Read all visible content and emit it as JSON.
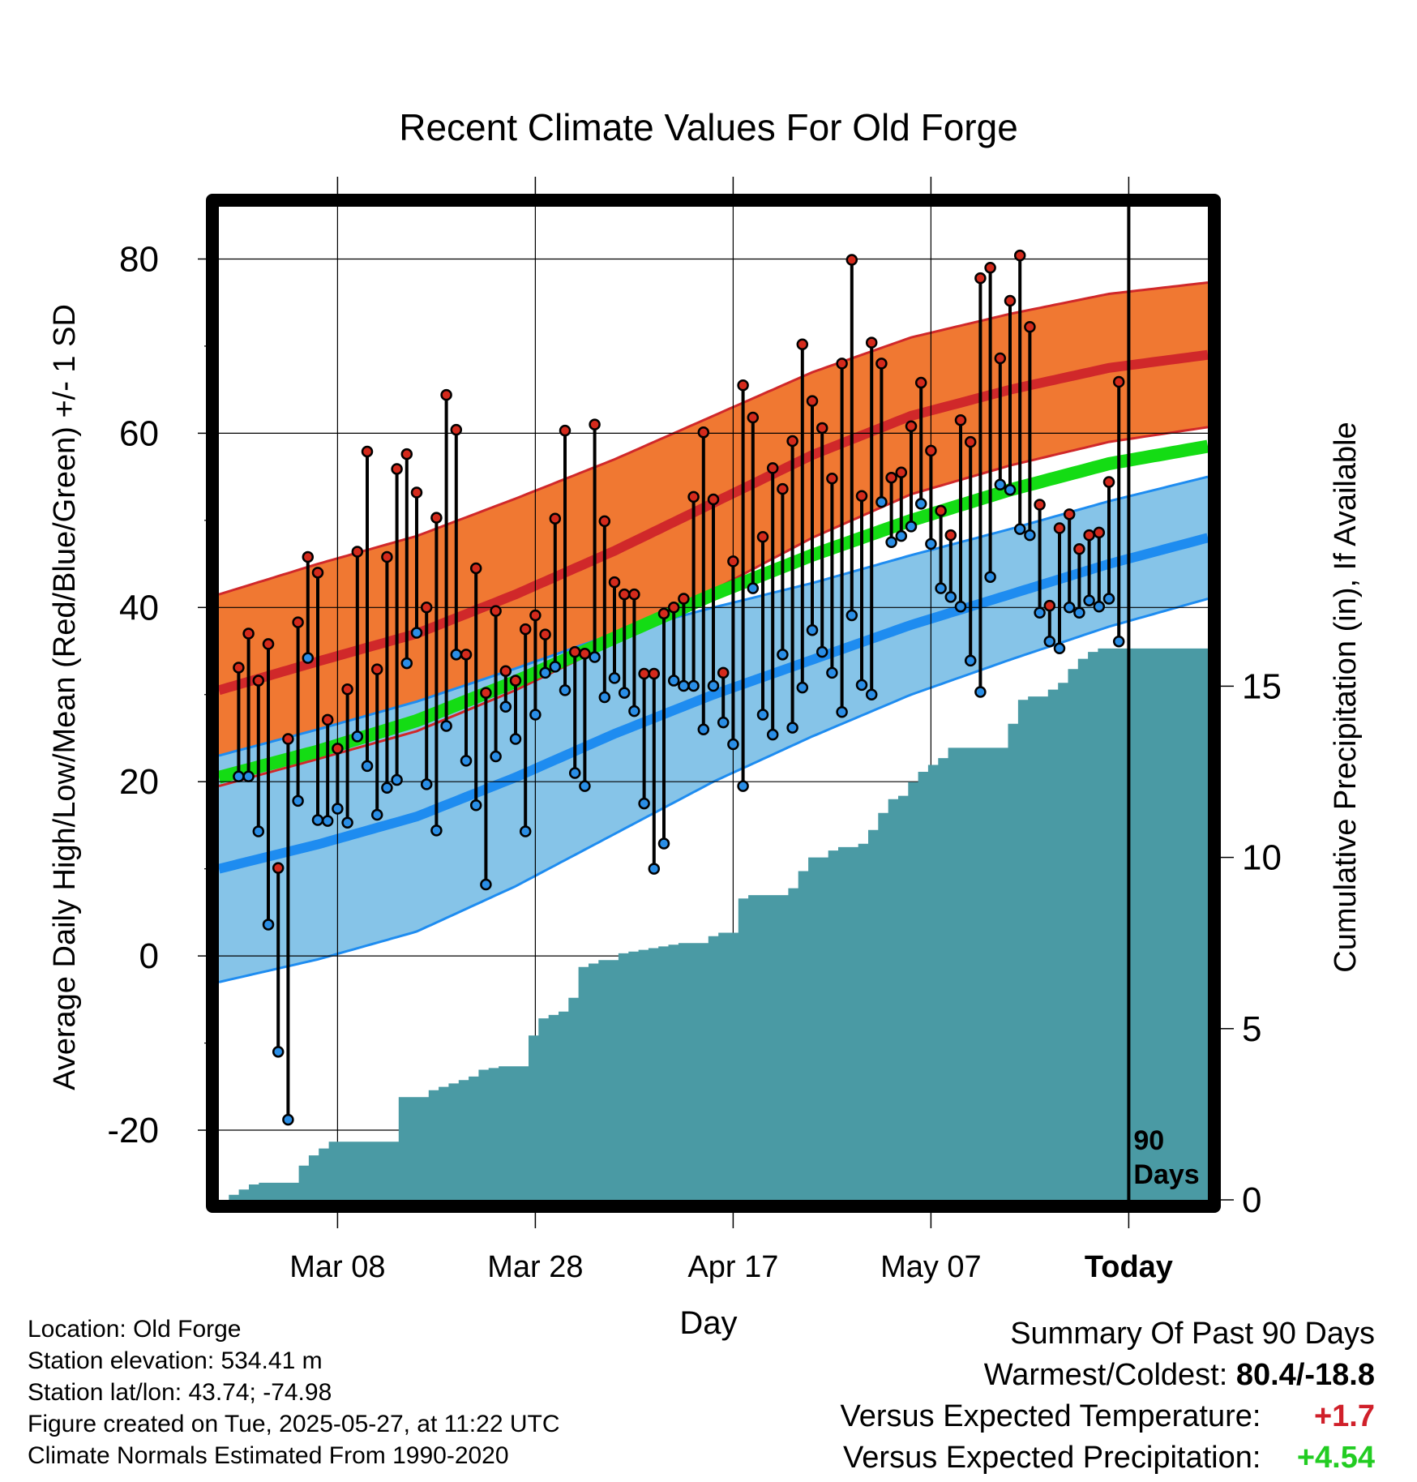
{
  "chart_data": {
    "type": "line",
    "title": "Recent Climate Values For Old Forge",
    "xlabel": "Day",
    "ylabel_left": "Average Daily High/Low/Mean (Red/Blue/Green) +/- 1 SD",
    "ylabel_right": "Cumulative Precipitation (in), If Available",
    "x_tick_labels": [
      "Mar 08",
      "Mar 28",
      "Apr 17",
      "May 07",
      "Today"
    ],
    "y_ticks_left": [
      -20,
      0,
      20,
      40,
      60,
      80
    ],
    "y_ticks_right": [
      0,
      5,
      10,
      15
    ],
    "ylim_left": [
      -28,
      86
    ],
    "ylim_right": [
      0,
      29
    ],
    "today_marker_label": [
      "90",
      "Days"
    ],
    "grid": true,
    "colors": {
      "high_band": "#f07832",
      "high_line": "#d0282a",
      "low_band": "#86c4e8",
      "low_line": "#1e8cf0",
      "mean_line": "#14dc14",
      "precip_fill": "#4a9aa4",
      "high_marker": "#d42a1c",
      "low_marker": "#2a8ee6",
      "today_line": "#000000"
    },
    "normal_high": [
      30.5,
      33.8,
      37.0,
      41.5,
      46.5,
      52.0,
      57.5,
      62.0,
      65.0,
      67.5,
      69.0
    ],
    "normal_high_sd": [
      11.0,
      11.2,
      11.2,
      11.0,
      10.5,
      10.0,
      9.5,
      9.0,
      8.7,
      8.5,
      8.3
    ],
    "normal_low": [
      10.0,
      12.8,
      16.0,
      20.5,
      25.5,
      30.0,
      34.0,
      38.0,
      41.5,
      45.0,
      48.0
    ],
    "normal_low_sd": [
      13.0,
      13.2,
      13.2,
      12.5,
      11.5,
      10.0,
      8.8,
      8.0,
      7.5,
      7.2,
      7.0
    ],
    "normal_mean": [
      20.5,
      23.5,
      27.0,
      31.5,
      36.5,
      41.5,
      46.0,
      50.0,
      53.5,
      56.5,
      58.5
    ],
    "days": [
      {
        "d": 0,
        "hi": 33.1,
        "lo": 20.6
      },
      {
        "d": 1,
        "hi": 37.0,
        "lo": 20.6
      },
      {
        "d": 2,
        "hi": 31.6,
        "lo": 14.3
      },
      {
        "d": 3,
        "hi": 35.8,
        "lo": 3.6
      },
      {
        "d": 4,
        "hi": 10.1,
        "lo": -11.0
      },
      {
        "d": 5,
        "hi": 24.9,
        "lo": -18.8
      },
      {
        "d": 6,
        "hi": 38.3,
        "lo": 17.8
      },
      {
        "d": 7,
        "hi": 45.8,
        "lo": 34.2
      },
      {
        "d": 8,
        "hi": 44.0,
        "lo": 15.6
      },
      {
        "d": 9,
        "hi": 27.1,
        "lo": 15.5
      },
      {
        "d": 10,
        "hi": 23.8,
        "lo": 16.9
      },
      {
        "d": 11,
        "hi": 30.6,
        "lo": 15.3
      },
      {
        "d": 12,
        "hi": 46.4,
        "lo": 25.2
      },
      {
        "d": 13,
        "hi": 57.9,
        "lo": 21.8
      },
      {
        "d": 14,
        "hi": 32.9,
        "lo": 16.2
      },
      {
        "d": 15,
        "hi": 45.8,
        "lo": 19.3
      },
      {
        "d": 16,
        "hi": 55.9,
        "lo": 20.2
      },
      {
        "d": 17,
        "hi": 57.6,
        "lo": 33.6
      },
      {
        "d": 18,
        "hi": 53.2,
        "lo": 37.1
      },
      {
        "d": 19,
        "hi": 40.0,
        "lo": 19.7
      },
      {
        "d": 20,
        "hi": 50.3,
        "lo": 14.4
      },
      {
        "d": 21,
        "hi": 64.4,
        "lo": 26.4
      },
      {
        "d": 22,
        "hi": 60.4,
        "lo": 34.6
      },
      {
        "d": 23,
        "hi": 34.6,
        "lo": 22.4
      },
      {
        "d": 24,
        "hi": 44.5,
        "lo": 17.3
      },
      {
        "d": 25,
        "hi": 30.2,
        "lo": 8.2
      },
      {
        "d": 26,
        "hi": 39.6,
        "lo": 22.9
      },
      {
        "d": 27,
        "hi": 32.7,
        "lo": 28.6
      },
      {
        "d": 28,
        "hi": 31.6,
        "lo": 24.9
      },
      {
        "d": 29,
        "hi": 37.5,
        "lo": 14.3
      },
      {
        "d": 30,
        "hi": 39.1,
        "lo": 27.7
      },
      {
        "d": 31,
        "hi": 36.9,
        "lo": 32.5
      },
      {
        "d": 32,
        "hi": 50.2,
        "lo": 33.2
      },
      {
        "d": 33,
        "hi": 60.3,
        "lo": 30.5
      },
      {
        "d": 34,
        "hi": 34.9,
        "lo": 21.0
      },
      {
        "d": 35,
        "hi": 34.7,
        "lo": 19.5
      },
      {
        "d": 36,
        "hi": 61.0,
        "lo": 34.3
      },
      {
        "d": 37,
        "hi": 49.9,
        "lo": 29.7
      },
      {
        "d": 38,
        "hi": 42.9,
        "lo": 31.9
      },
      {
        "d": 39,
        "hi": 41.5,
        "lo": 30.2
      },
      {
        "d": 40,
        "hi": 41.5,
        "lo": 28.1
      },
      {
        "d": 41,
        "hi": 32.4,
        "lo": 17.5
      },
      {
        "d": 42,
        "hi": 32.4,
        "lo": 10.0
      },
      {
        "d": 43,
        "hi": 39.3,
        "lo": 12.9
      },
      {
        "d": 44,
        "hi": 40.0,
        "lo": 31.6
      },
      {
        "d": 45,
        "hi": 41.0,
        "lo": 31.0
      },
      {
        "d": 46,
        "hi": 52.7,
        "lo": 31.0
      },
      {
        "d": 47,
        "hi": 60.1,
        "lo": 26.0
      },
      {
        "d": 48,
        "hi": 52.4,
        "lo": 31.0
      },
      {
        "d": 49,
        "hi": 32.5,
        "lo": 26.8
      },
      {
        "d": 50,
        "hi": 45.3,
        "lo": 24.3
      },
      {
        "d": 51,
        "hi": 65.5,
        "lo": 19.5
      },
      {
        "d": 52,
        "hi": 61.8,
        "lo": 42.2
      },
      {
        "d": 53,
        "hi": 48.1,
        "lo": 27.7
      },
      {
        "d": 54,
        "hi": 56.0,
        "lo": 25.4
      },
      {
        "d": 55,
        "hi": 53.6,
        "lo": 34.6
      },
      {
        "d": 56,
        "hi": 59.1,
        "lo": 26.2
      },
      {
        "d": 57,
        "hi": 70.2,
        "lo": 30.8
      },
      {
        "d": 58,
        "hi": 63.7,
        "lo": 37.4
      },
      {
        "d": 59,
        "hi": 60.6,
        "lo": 34.9
      },
      {
        "d": 60,
        "hi": 54.8,
        "lo": 32.5
      },
      {
        "d": 61,
        "hi": 68.0,
        "lo": 28.0
      },
      {
        "d": 62,
        "hi": 79.9,
        "lo": 39.1
      },
      {
        "d": 63,
        "hi": 52.8,
        "lo": 31.1
      },
      {
        "d": 64,
        "hi": 70.4,
        "lo": 30.0
      },
      {
        "d": 65,
        "hi": 68.0,
        "lo": 52.1
      },
      {
        "d": 66,
        "hi": 54.9,
        "lo": 47.5
      },
      {
        "d": 67,
        "hi": 55.5,
        "lo": 48.2
      },
      {
        "d": 68,
        "hi": 60.8,
        "lo": 49.3
      },
      {
        "d": 69,
        "hi": 65.8,
        "lo": 51.9
      },
      {
        "d": 70,
        "hi": 58.0,
        "lo": 47.3
      },
      {
        "d": 71,
        "hi": 51.1,
        "lo": 42.2
      },
      {
        "d": 72,
        "hi": 48.3,
        "lo": 41.2
      },
      {
        "d": 73,
        "hi": 61.5,
        "lo": 40.1
      },
      {
        "d": 74,
        "hi": 59.0,
        "lo": 33.9
      },
      {
        "d": 75,
        "hi": 77.8,
        "lo": 30.3
      },
      {
        "d": 76,
        "hi": 79.0,
        "lo": 43.5
      },
      {
        "d": 77,
        "hi": 68.6,
        "lo": 54.1
      },
      {
        "d": 78,
        "hi": 75.2,
        "lo": 53.5
      },
      {
        "d": 79,
        "hi": 80.4,
        "lo": 49.0
      },
      {
        "d": 80,
        "hi": 72.2,
        "lo": 48.3
      },
      {
        "d": 81,
        "hi": 51.8,
        "lo": 39.4
      },
      {
        "d": 82,
        "hi": 40.2,
        "lo": 36.1
      },
      {
        "d": 83,
        "hi": 49.1,
        "lo": 35.3
      },
      {
        "d": 84,
        "hi": 50.7,
        "lo": 40.0
      },
      {
        "d": 85,
        "hi": 46.7,
        "lo": 39.4
      },
      {
        "d": 86,
        "hi": 48.3,
        "lo": 40.8
      },
      {
        "d": 87,
        "hi": 48.6,
        "lo": 40.1
      },
      {
        "d": 88,
        "hi": 54.4,
        "lo": 41.0
      },
      {
        "d": 89,
        "hi": 65.9,
        "lo": 36.1
      }
    ],
    "cumulative_precip": [
      0.0,
      0.15,
      0.3,
      0.45,
      0.5,
      0.5,
      0.5,
      0.5,
      1.0,
      1.3,
      1.5,
      1.7,
      1.7,
      1.7,
      1.7,
      1.7,
      1.7,
      1.7,
      3.0,
      3.0,
      3.0,
      3.2,
      3.3,
      3.4,
      3.5,
      3.6,
      3.8,
      3.85,
      3.9,
      3.9,
      3.9,
      4.8,
      5.3,
      5.4,
      5.5,
      5.9,
      6.8,
      6.9,
      7.0,
      7.0,
      7.2,
      7.25,
      7.3,
      7.35,
      7.4,
      7.45,
      7.5,
      7.5,
      7.5,
      7.7,
      7.8,
      7.8,
      8.8,
      8.9,
      8.9,
      8.9,
      8.9,
      9.1,
      9.6,
      10.0,
      10.0,
      10.2,
      10.3,
      10.3,
      10.4,
      10.8,
      11.3,
      11.7,
      11.8,
      12.2,
      12.5,
      12.7,
      12.9,
      13.2,
      13.2,
      13.2,
      13.2,
      13.2,
      13.2,
      13.9,
      14.6,
      14.7,
      14.7,
      14.9,
      15.1,
      15.5,
      15.8,
      16.0,
      16.1,
      16.1,
      16.1,
      16.1,
      16.1,
      16.1,
      16.1,
      16.1,
      16.1,
      16.1,
      16.1,
      16.1
    ]
  },
  "info": {
    "location": "Location: Old Forge",
    "elevation": "Station elevation: 534.41 m",
    "latlon": "Station lat/lon: 43.74; -74.98",
    "created": "Figure created on Tue, 2025-05-27, at 11:22 UTC",
    "normals": "Climate Normals Estimated From 1990-2020"
  },
  "summary": {
    "heading": "Summary Of Past 90 Days",
    "warmest_coldest_label": "Warmest/Coldest:",
    "warmest_coldest_value": "80.4/-18.8",
    "temp_label": "Versus Expected Temperature:",
    "temp_value": "+1.7",
    "precip_label": "Versus Expected Precipitation:",
    "precip_value": "+4.54"
  }
}
